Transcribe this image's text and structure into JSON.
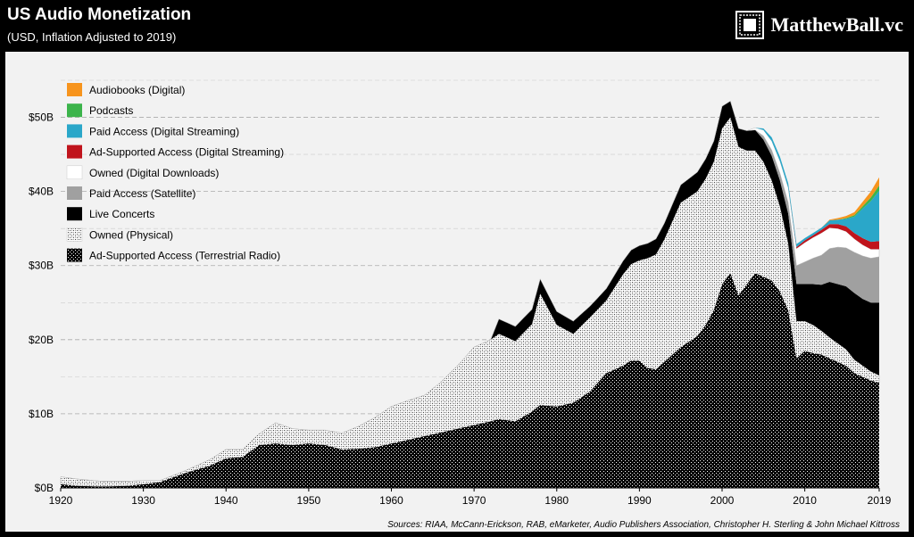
{
  "header": {
    "title": "US Audio Monetization",
    "subtitle": "(USD, Inflation Adjusted to 2019)",
    "brand": "MatthewBall.vc"
  },
  "footer": {
    "sources": "Sources: RIAA, McCann-Erickson, RAB, eMarketer, Audio Publishers Association, Christopher H. Sterling & John Michael Kittross"
  },
  "colors": {
    "audiobooks": "#f7941d",
    "podcasts": "#3cb44b",
    "paid_streaming": "#2aa7c9",
    "ad_streaming": "#c0141c",
    "downloads": "#ffffff",
    "satellite": "#a0a0a0",
    "live": "#000000",
    "physical": "#ffffff",
    "radio": "#000000",
    "panel": "#f2f2f2",
    "grid": "#aaaaaa"
  },
  "chart_data": {
    "type": "area",
    "stacked": true,
    "ylim": [
      0,
      55
    ],
    "xlim": [
      1920,
      2019
    ],
    "y_ticks": [
      0,
      10,
      20,
      30,
      40,
      50
    ],
    "y_tick_labels": [
      "$0B",
      "$10B",
      "$20B",
      "$30B",
      "$40B",
      "$50B"
    ],
    "x_ticks": [
      1920,
      1930,
      1940,
      1950,
      1960,
      1970,
      1980,
      1990,
      2000,
      2010,
      2019
    ],
    "x_tick_labels": [
      "1920",
      "1930",
      "1940",
      "1950",
      "1960",
      "1970",
      "1980",
      "1990",
      "2000",
      "2010",
      "2019"
    ],
    "grid": "horizontal dashed",
    "legend_position": "top-left",
    "legend": [
      {
        "key": "audiobooks",
        "label": "Audiobooks (Digital)",
        "fill": "solid"
      },
      {
        "key": "podcasts",
        "label": "Podcasts",
        "fill": "solid"
      },
      {
        "key": "paid_streaming",
        "label": "Paid Access (Digital Streaming)",
        "fill": "solid"
      },
      {
        "key": "ad_streaming",
        "label": "Ad-Supported Access (Digital Streaming)",
        "fill": "solid"
      },
      {
        "key": "downloads",
        "label": "Owned (Digital Downloads)",
        "fill": "solid"
      },
      {
        "key": "satellite",
        "label": "Paid Access (Satellite)",
        "fill": "solid"
      },
      {
        "key": "live",
        "label": "Live Concerts",
        "fill": "solid"
      },
      {
        "key": "physical",
        "label": "Owned (Physical)",
        "fill": "hatch-light"
      },
      {
        "key": "radio",
        "label": "Ad-Supported Access (Terrestrial Radio)",
        "fill": "hatch-dark"
      }
    ],
    "series": [
      {
        "key": "radio",
        "points": [
          [
            1920,
            0.5
          ],
          [
            1922,
            0.3
          ],
          [
            1925,
            0.2
          ],
          [
            1928,
            0.3
          ],
          [
            1930,
            0.5
          ],
          [
            1932,
            0.8
          ],
          [
            1935,
            2
          ],
          [
            1938,
            3
          ],
          [
            1940,
            4
          ],
          [
            1942,
            4.2
          ],
          [
            1944,
            5.8
          ],
          [
            1946,
            6
          ],
          [
            1948,
            5.8
          ],
          [
            1950,
            6
          ],
          [
            1952,
            5.8
          ],
          [
            1954,
            5.2
          ],
          [
            1956,
            5.3
          ],
          [
            1958,
            5.5
          ],
          [
            1960,
            6
          ],
          [
            1962,
            6.5
          ],
          [
            1964,
            7
          ],
          [
            1966,
            7.5
          ],
          [
            1968,
            8
          ],
          [
            1970,
            8.5
          ],
          [
            1972,
            9
          ],
          [
            1973,
            9.3
          ],
          [
            1975,
            9
          ],
          [
            1977,
            10.3
          ],
          [
            1978,
            11.2
          ],
          [
            1980,
            11
          ],
          [
            1982,
            11.5
          ],
          [
            1984,
            13
          ],
          [
            1986,
            15.5
          ],
          [
            1988,
            16.5
          ],
          [
            1989,
            17.2
          ],
          [
            1990,
            17.2
          ],
          [
            1991,
            16.2
          ],
          [
            1992,
            16
          ],
          [
            1993,
            17
          ],
          [
            1995,
            19
          ],
          [
            1997,
            20.5
          ],
          [
            1998,
            22
          ],
          [
            1999,
            24
          ],
          [
            2000,
            27.5
          ],
          [
            2001,
            29
          ],
          [
            2002,
            26
          ],
          [
            2003,
            27.5
          ],
          [
            2004,
            29
          ],
          [
            2005,
            28.5
          ],
          [
            2006,
            28
          ],
          [
            2007,
            26.5
          ],
          [
            2008,
            24
          ],
          [
            2009,
            17.5
          ],
          [
            2010,
            18.5
          ],
          [
            2011,
            18.2
          ],
          [
            2012,
            18
          ],
          [
            2013,
            17.5
          ],
          [
            2014,
            17
          ],
          [
            2015,
            16.5
          ],
          [
            2016,
            15.5
          ],
          [
            2017,
            15
          ],
          [
            2018,
            14.5
          ],
          [
            2019,
            14.2
          ]
        ]
      },
      {
        "key": "physical",
        "points": [
          [
            1920,
            1
          ],
          [
            1922,
            0.9
          ],
          [
            1925,
            0.7
          ],
          [
            1928,
            0.6
          ],
          [
            1930,
            0.5
          ],
          [
            1932,
            0.2
          ],
          [
            1935,
            0.3
          ],
          [
            1938,
            0.8
          ],
          [
            1940,
            1.2
          ],
          [
            1942,
            1
          ],
          [
            1944,
            1.5
          ],
          [
            1946,
            2.8
          ],
          [
            1948,
            2.2
          ],
          [
            1950,
            1.8
          ],
          [
            1952,
            2
          ],
          [
            1954,
            2.2
          ],
          [
            1956,
            3
          ],
          [
            1958,
            4
          ],
          [
            1960,
            5
          ],
          [
            1962,
            5.3
          ],
          [
            1964,
            5.5
          ],
          [
            1966,
            6.8
          ],
          [
            1968,
            8.5
          ],
          [
            1970,
            10.5
          ],
          [
            1972,
            11
          ],
          [
            1973,
            11.5
          ],
          [
            1975,
            10.8
          ],
          [
            1977,
            11.8
          ],
          [
            1978,
            15
          ],
          [
            1980,
            11
          ],
          [
            1982,
            9.3
          ],
          [
            1984,
            10
          ],
          [
            1986,
            9.8
          ],
          [
            1988,
            12.3
          ],
          [
            1989,
            13
          ],
          [
            1990,
            13.5
          ],
          [
            1991,
            14.8
          ],
          [
            1992,
            15.5
          ],
          [
            1993,
            16.5
          ],
          [
            1995,
            19.5
          ],
          [
            1997,
            19.5
          ],
          [
            1998,
            19.7
          ],
          [
            1999,
            20
          ],
          [
            2000,
            21
          ],
          [
            2001,
            21
          ],
          [
            2002,
            20
          ],
          [
            2003,
            18
          ],
          [
            2004,
            16.5
          ],
          [
            2005,
            15.5
          ],
          [
            2006,
            13.5
          ],
          [
            2007,
            11.5
          ],
          [
            2008,
            9
          ],
          [
            2009,
            5
          ],
          [
            2010,
            4
          ],
          [
            2011,
            3.8
          ],
          [
            2012,
            3.2
          ],
          [
            2013,
            2.8
          ],
          [
            2014,
            2.5
          ],
          [
            2015,
            2.2
          ],
          [
            2016,
            1.8
          ],
          [
            2017,
            1.5
          ],
          [
            2018,
            1.2
          ],
          [
            2019,
            1
          ]
        ]
      },
      {
        "key": "live",
        "points": [
          [
            1920,
            0
          ],
          [
            1972,
            0
          ],
          [
            1973,
            2
          ],
          [
            1975,
            2
          ],
          [
            1977,
            2
          ],
          [
            1978,
            2
          ],
          [
            1980,
            1.8
          ],
          [
            1982,
            1.7
          ],
          [
            1984,
            1.5
          ],
          [
            1986,
            1.6
          ],
          [
            1988,
            1.8
          ],
          [
            1989,
            1.9
          ],
          [
            1990,
            2
          ],
          [
            1991,
            2
          ],
          [
            1992,
            2.1
          ],
          [
            1993,
            2.2
          ],
          [
            1995,
            2.4
          ],
          [
            1997,
            2.6
          ],
          [
            1998,
            2.7
          ],
          [
            1999,
            2.8
          ],
          [
            2000,
            3
          ],
          [
            2001,
            2.2
          ],
          [
            2002,
            2.5
          ],
          [
            2003,
            2.7
          ],
          [
            2004,
            2.8
          ],
          [
            2005,
            3
          ],
          [
            2006,
            3.3
          ],
          [
            2007,
            3.5
          ],
          [
            2008,
            4
          ],
          [
            2009,
            5
          ],
          [
            2010,
            5
          ],
          [
            2011,
            5.5
          ],
          [
            2012,
            6.2
          ],
          [
            2013,
            7.5
          ],
          [
            2014,
            8
          ],
          [
            2015,
            8.5
          ],
          [
            2016,
            9
          ],
          [
            2017,
            9
          ],
          [
            2018,
            9.3
          ],
          [
            2019,
            9.8
          ]
        ]
      },
      {
        "key": "satellite",
        "points": [
          [
            1920,
            0
          ],
          [
            2004,
            0
          ],
          [
            2005,
            0.5
          ],
          [
            2006,
            0.8
          ],
          [
            2007,
            1
          ],
          [
            2008,
            1.5
          ],
          [
            2009,
            2.5
          ],
          [
            2010,
            3
          ],
          [
            2011,
            3.5
          ],
          [
            2012,
            4
          ],
          [
            2013,
            4.5
          ],
          [
            2014,
            5
          ],
          [
            2015,
            5.2
          ],
          [
            2016,
            5.5
          ],
          [
            2017,
            5.8
          ],
          [
            2018,
            6
          ],
          [
            2019,
            6.2
          ]
        ]
      },
      {
        "key": "downloads",
        "points": [
          [
            1920,
            0
          ],
          [
            2003,
            0
          ],
          [
            2004,
            0.3
          ],
          [
            2005,
            0.8
          ],
          [
            2006,
            1.2
          ],
          [
            2007,
            1.6
          ],
          [
            2008,
            2
          ],
          [
            2009,
            2.3
          ],
          [
            2010,
            2.6
          ],
          [
            2011,
            2.8
          ],
          [
            2012,
            3
          ],
          [
            2013,
            2.8
          ],
          [
            2014,
            2.5
          ],
          [
            2015,
            2.2
          ],
          [
            2016,
            1.8
          ],
          [
            2017,
            1.5
          ],
          [
            2018,
            1.2
          ],
          [
            2019,
            1
          ]
        ]
      },
      {
        "key": "ad_streaming",
        "points": [
          [
            1920,
            0
          ],
          [
            2008,
            0
          ],
          [
            2009,
            0.2
          ],
          [
            2010,
            0.3
          ],
          [
            2011,
            0.3
          ],
          [
            2012,
            0.4
          ],
          [
            2013,
            0.5
          ],
          [
            2014,
            0.6
          ],
          [
            2015,
            0.7
          ],
          [
            2016,
            0.8
          ],
          [
            2017,
            0.9
          ],
          [
            2018,
            1
          ],
          [
            2019,
            1.1
          ]
        ]
      },
      {
        "key": "paid_streaming",
        "points": [
          [
            1920,
            0
          ],
          [
            2004,
            0
          ],
          [
            2005,
            0.2
          ],
          [
            2006,
            0.5
          ],
          [
            2007,
            0.6
          ],
          [
            2008,
            0.6
          ],
          [
            2009,
            0.4
          ],
          [
            2010,
            0.3
          ],
          [
            2011,
            0.3
          ],
          [
            2012,
            0.3
          ],
          [
            2013,
            0.5
          ],
          [
            2014,
            0.6
          ],
          [
            2015,
            1
          ],
          [
            2016,
            2.2
          ],
          [
            2017,
            4
          ],
          [
            2018,
            5.5
          ],
          [
            2019,
            6.8
          ]
        ]
      },
      {
        "key": "podcasts",
        "points": [
          [
            1920,
            0
          ],
          [
            2014,
            0
          ],
          [
            2015,
            0.1
          ],
          [
            2016,
            0.2
          ],
          [
            2017,
            0.3
          ],
          [
            2018,
            0.5
          ],
          [
            2019,
            0.7
          ]
        ]
      },
      {
        "key": "audiobooks",
        "points": [
          [
            1920,
            0
          ],
          [
            2012,
            0
          ],
          [
            2013,
            0.1
          ],
          [
            2014,
            0.2
          ],
          [
            2015,
            0.3
          ],
          [
            2016,
            0.4
          ],
          [
            2017,
            0.6
          ],
          [
            2018,
            0.8
          ],
          [
            2019,
            1.1
          ]
        ]
      }
    ]
  }
}
